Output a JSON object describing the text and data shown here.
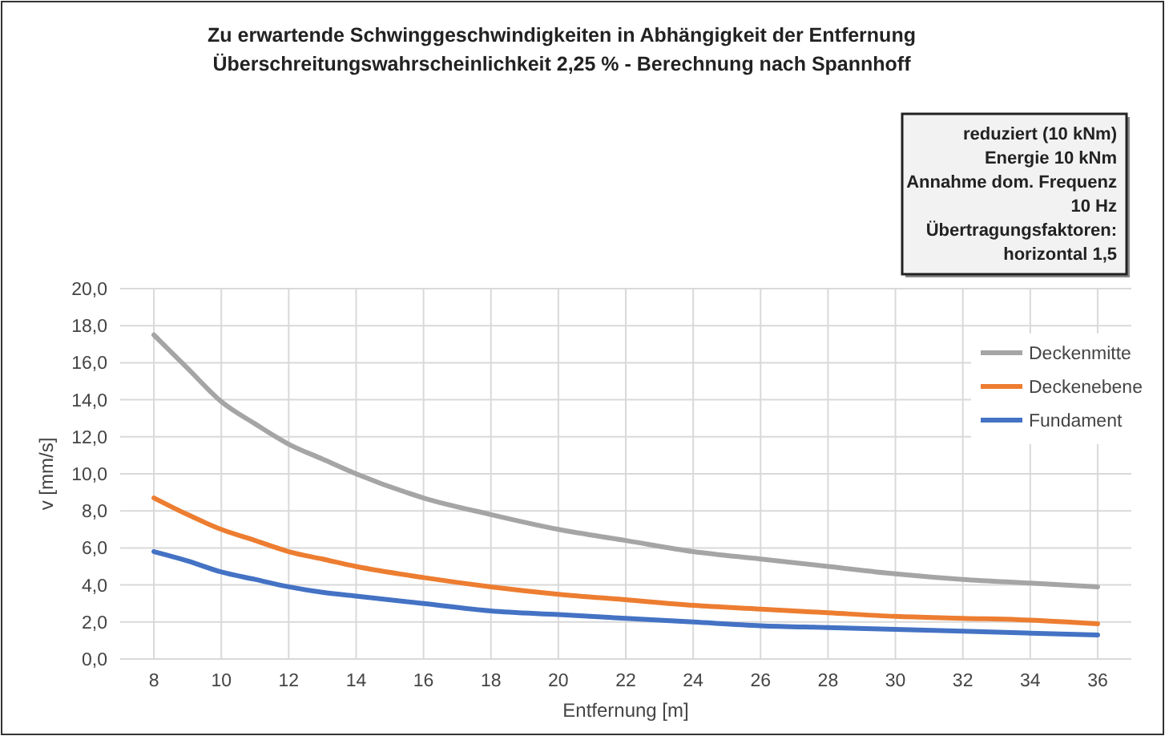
{
  "chart_data": {
    "type": "line",
    "title": "Zu erwartende Schwinggeschwindigkeiten in Abhängigkeit der Entfernung",
    "subtitle": "Überschreitungswahrscheinlichkeit 2,25 % - Berechnung nach Spannhoff",
    "xlabel": "Entfernung [m]",
    "ylabel": "v [mm/s]",
    "x": [
      8,
      9,
      10,
      11,
      12,
      13,
      14,
      16,
      18,
      20,
      22,
      24,
      26,
      28,
      30,
      32,
      34,
      36
    ],
    "series": [
      {
        "name": "Deckenmitte",
        "color": "#a5a5a5",
        "values": [
          17.5,
          15.7,
          13.9,
          12.7,
          11.6,
          10.8,
          10.0,
          8.7,
          7.8,
          7.0,
          6.4,
          5.8,
          5.4,
          5.0,
          4.6,
          4.3,
          4.1,
          3.9
        ]
      },
      {
        "name": "Deckenebene",
        "color": "#ed7d31",
        "values": [
          8.7,
          7.8,
          7.0,
          6.4,
          5.8,
          5.4,
          5.0,
          4.4,
          3.9,
          3.5,
          3.2,
          2.9,
          2.7,
          2.5,
          2.3,
          2.2,
          2.1,
          1.9
        ]
      },
      {
        "name": "Fundament",
        "color": "#4472c4",
        "values": [
          5.8,
          5.3,
          4.7,
          4.3,
          3.9,
          3.6,
          3.4,
          3.0,
          2.6,
          2.4,
          2.2,
          2.0,
          1.8,
          1.7,
          1.6,
          1.5,
          1.4,
          1.3
        ]
      }
    ],
    "xlim": [
      7,
      37
    ],
    "xticks": [
      8,
      10,
      12,
      14,
      16,
      18,
      20,
      22,
      24,
      26,
      28,
      30,
      32,
      34,
      36
    ],
    "ylim": [
      0,
      20
    ],
    "yticks": [
      {
        "value": 0,
        "label": "0,0"
      },
      {
        "value": 2,
        "label": "2,0"
      },
      {
        "value": 4,
        "label": "4,0"
      },
      {
        "value": 6,
        "label": "6,0"
      },
      {
        "value": 8,
        "label": "8,0"
      },
      {
        "value": 10,
        "label": "10,0"
      },
      {
        "value": 12,
        "label": "12,0"
      },
      {
        "value": 14,
        "label": "14,0"
      },
      {
        "value": 16,
        "label": "16,0"
      },
      {
        "value": 18,
        "label": "18,0"
      },
      {
        "value": 20,
        "label": "20,0"
      }
    ],
    "grid": true,
    "legend": "right",
    "marker": "none",
    "line_style": "solid",
    "annotations": [
      "reduziert (10 kNm)",
      "Energie 10 kNm",
      "Annahme dom. Frequenz 10 Hz",
      "Übertragungsfaktoren: horizontal 1,5"
    ]
  }
}
